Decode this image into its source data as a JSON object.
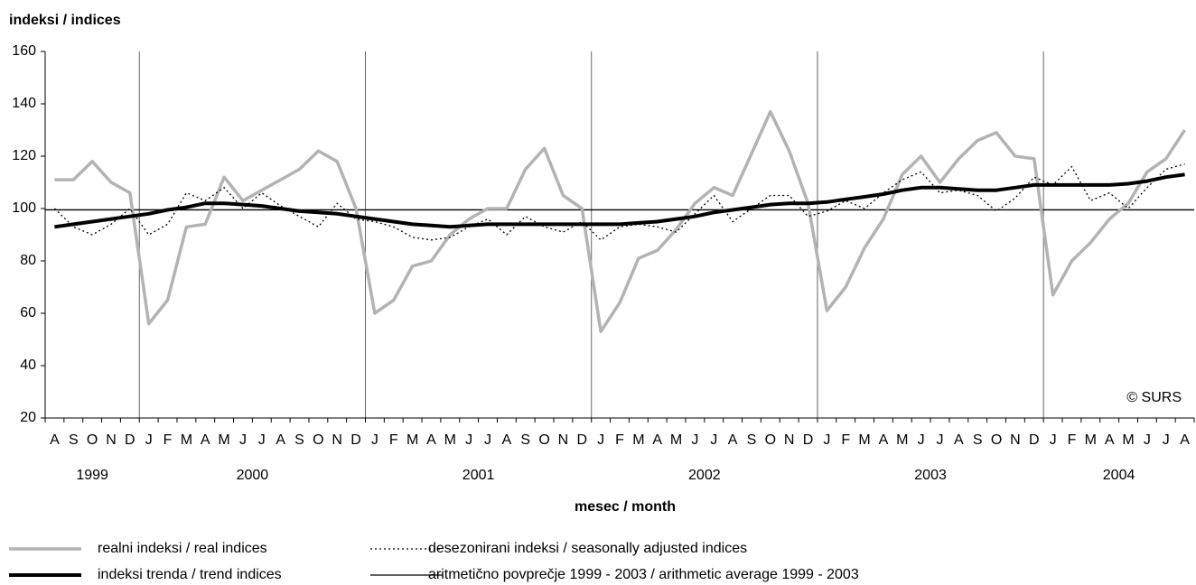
{
  "chart_data": {
    "type": "line",
    "y_axis_label": "indeksi / indices",
    "x_axis_label": "mesec / month",
    "annotation": "© SURS",
    "categories": [
      "A",
      "S",
      "O",
      "N",
      "D",
      "J",
      "F",
      "M",
      "A",
      "M",
      "J",
      "J",
      "A",
      "S",
      "O",
      "N",
      "D",
      "J",
      "F",
      "M",
      "A",
      "M",
      "J",
      "J",
      "A",
      "S",
      "O",
      "N",
      "D",
      "J",
      "F",
      "M",
      "A",
      "M",
      "J",
      "J",
      "A",
      "S",
      "O",
      "N",
      "D",
      "J",
      "F",
      "M",
      "A",
      "M",
      "J",
      "J",
      "A",
      "S",
      "O",
      "N",
      "D",
      "J",
      "F",
      "M",
      "A",
      "M",
      "J",
      "J",
      "A"
    ],
    "groups": [
      {
        "label": "1999",
        "size": 5
      },
      {
        "label": "2000",
        "size": 12
      },
      {
        "label": "2001",
        "size": 12
      },
      {
        "label": "2002",
        "size": 12
      },
      {
        "label": "2003",
        "size": 12
      },
      {
        "label": "2004",
        "size": 8
      }
    ],
    "series": [
      {
        "name": "realni indeksi / real indices",
        "color": "#b3b3b3",
        "width": 3.5,
        "style": "solid",
        "values": [
          111,
          111,
          118,
          110,
          106,
          56,
          65,
          93,
          94,
          112,
          103,
          107,
          111,
          115,
          122,
          118,
          100,
          60,
          65,
          78,
          80,
          90,
          96,
          100,
          100,
          115,
          123,
          105,
          100,
          53,
          64,
          81,
          84,
          92,
          102,
          108,
          105,
          121,
          137,
          122,
          102,
          61,
          70,
          85,
          96,
          113,
          120,
          110,
          119,
          126,
          129,
          120,
          119,
          67,
          80,
          87,
          96,
          102,
          114,
          119,
          130
        ]
      },
      {
        "name": "desezonirani indeksi / seasonally adjusted indices",
        "color": "#000000",
        "width": 1.3,
        "style": "dotted",
        "values": [
          100,
          93,
          90,
          94,
          100,
          90,
          94,
          106,
          103,
          108,
          100,
          106,
          101,
          97,
          93,
          102,
          96,
          95,
          93,
          89,
          88,
          89,
          93,
          96,
          90,
          97,
          93,
          91,
          95,
          88,
          93,
          94,
          93,
          91,
          98,
          105,
          95,
          100,
          105,
          105,
          97,
          99,
          103,
          100,
          106,
          111,
          114,
          106,
          107,
          105,
          99,
          104,
          112,
          109,
          116,
          103,
          106,
          100,
          108,
          115,
          117
        ]
      },
      {
        "name": "indeksi trenda / trend indices",
        "color": "#000000",
        "width": 4,
        "style": "solid",
        "values": [
          93,
          94,
          95,
          96,
          97,
          98,
          99.5,
          100.5,
          102,
          102,
          101.5,
          101,
          100,
          99,
          98.5,
          98,
          97,
          96,
          95,
          94,
          93.5,
          93,
          93.5,
          94,
          94,
          94,
          94,
          94,
          94,
          94,
          94,
          94.5,
          95,
          96,
          97,
          98.5,
          99.5,
          100.5,
          101.5,
          102,
          102,
          102.5,
          103.5,
          104.5,
          105.5,
          107,
          108,
          108,
          107.5,
          107,
          107,
          108,
          109,
          109,
          109,
          109,
          109,
          109.5,
          110.5,
          112,
          113
        ]
      }
    ],
    "average": {
      "name": "aritmetično povprečje 1999 - 2003 / arithmetic average 1999 - 2003",
      "value": 99.5,
      "color": "#000000",
      "width": 1.3
    },
    "ylim": [
      20,
      160
    ],
    "yticks": [
      20,
      40,
      60,
      80,
      100,
      120,
      140,
      160
    ]
  }
}
